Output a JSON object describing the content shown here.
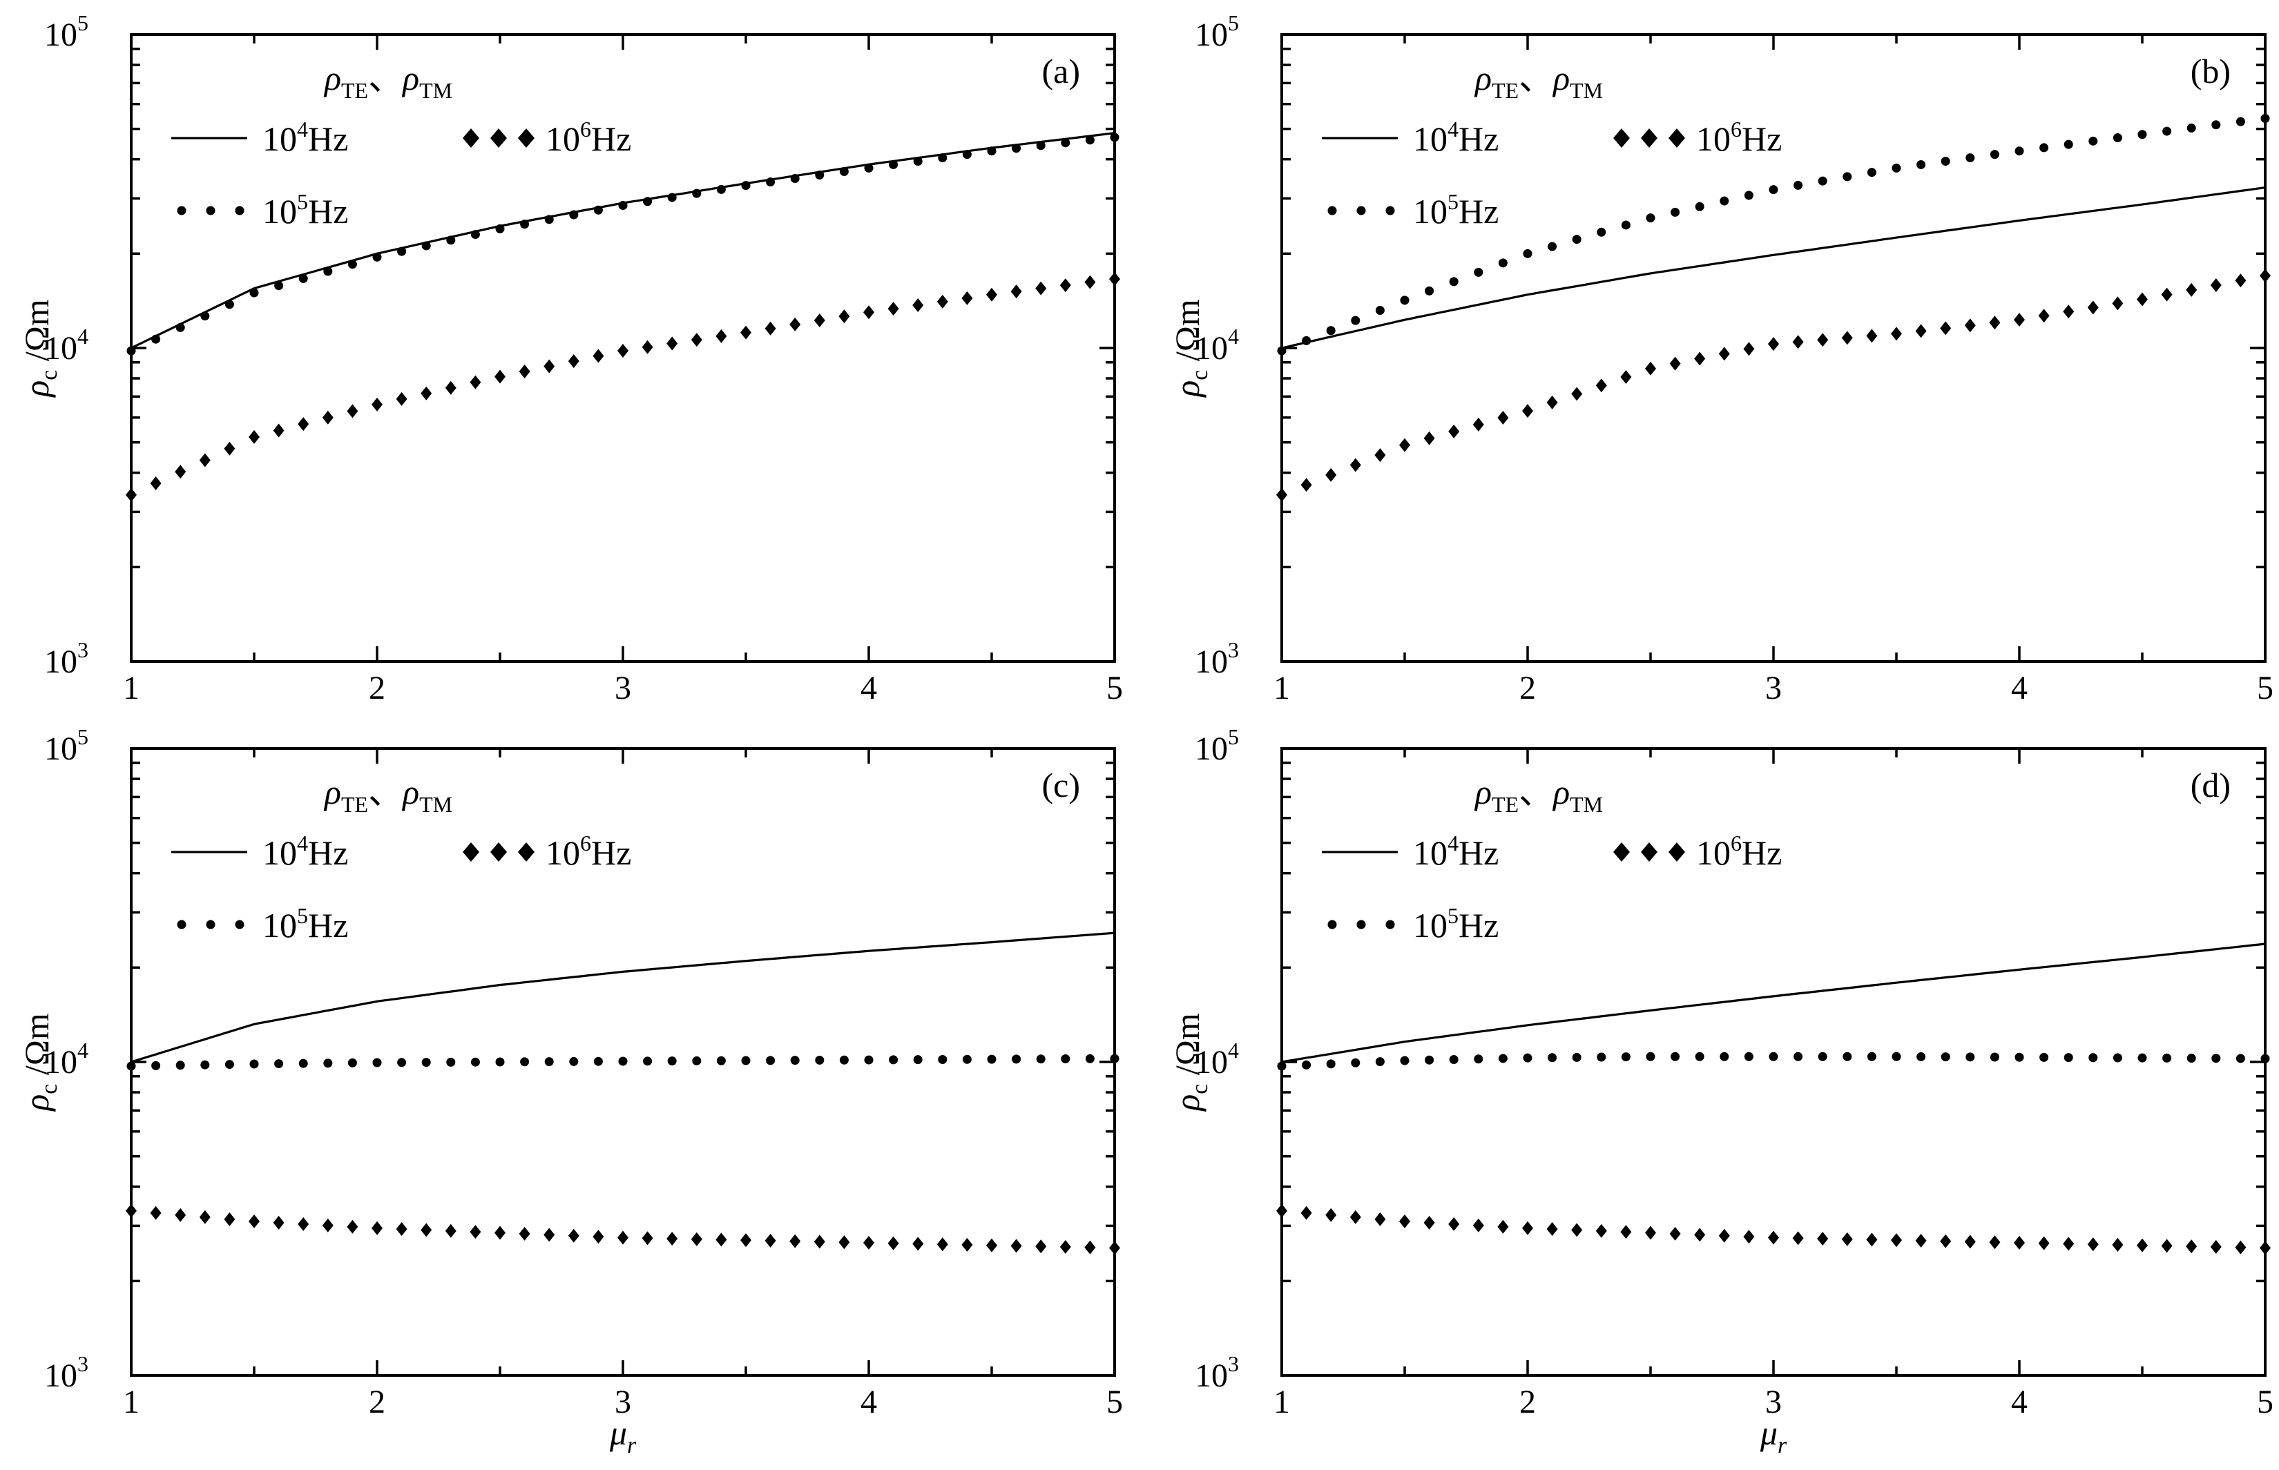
{
  "chart_data": [
    {
      "type": "line",
      "panel_label": "(a)",
      "xlim": [
        1,
        5
      ],
      "ylim": [
        1000,
        100000
      ],
      "yscale": "log",
      "xticks": [
        "1",
        "2",
        "3",
        "4",
        "5"
      ],
      "ytick_labels": [
        {
          "base": "10",
          "exp": "3"
        },
        {
          "base": "10",
          "exp": "4"
        },
        {
          "base": "10",
          "exp": "5"
        }
      ],
      "ylabel": {
        "main": "ρ",
        "sub": "c",
        "unit": " /Ωm"
      },
      "xlabel": {
        "main": "μ",
        "sub": "r"
      },
      "legend_title": {
        "a": "ρ",
        "a_sub": "TE",
        "sep": "、",
        "b": "ρ",
        "b_sub": "TM"
      },
      "legend": [
        {
          "base": "10",
          "exp": "4",
          "unit": "Hz",
          "marker": "line"
        },
        {
          "base": "10",
          "exp": "6",
          "unit": "Hz",
          "marker": "diamond"
        },
        {
          "base": "10",
          "exp": "5",
          "unit": "Hz",
          "marker": "dot"
        }
      ],
      "series": [
        {
          "name": "10⁴Hz",
          "style": "line",
          "x": [
            1,
            1.5,
            2,
            2.5,
            3,
            3.5,
            4,
            4.5,
            5
          ],
          "y": [
            10000,
            15500,
            20000,
            24500,
            29000,
            33500,
            38500,
            43500,
            48500
          ]
        },
        {
          "name": "10⁵Hz",
          "style": "dot",
          "x": [
            1,
            1.5,
            2,
            2.5,
            3,
            3.5,
            4,
            4.5,
            5
          ],
          "y": [
            9800,
            15000,
            19500,
            24000,
            28500,
            33000,
            37500,
            42500,
            47000
          ]
        },
        {
          "name": "10⁶Hz",
          "style": "diamond",
          "x": [
            1,
            1.5,
            2,
            2.5,
            3,
            3.5,
            4,
            4.5,
            5
          ],
          "y": [
            3400,
            5200,
            6600,
            8100,
            9800,
            11200,
            13000,
            14800,
            16600
          ]
        }
      ]
    },
    {
      "type": "line",
      "panel_label": "(b)",
      "xlim": [
        1,
        5
      ],
      "ylim": [
        1000,
        100000
      ],
      "yscale": "log",
      "xticks": [
        "1",
        "2",
        "3",
        "4",
        "5"
      ],
      "ytick_labels": [
        {
          "base": "10",
          "exp": "3"
        },
        {
          "base": "10",
          "exp": "4"
        },
        {
          "base": "10",
          "exp": "5"
        }
      ],
      "ylabel": {
        "main": "ρ",
        "sub": "c",
        "unit": " /Ωm"
      },
      "xlabel": {
        "main": "μ",
        "sub": "r"
      },
      "legend_title": {
        "a": "ρ",
        "a_sub": "TE",
        "sep": "、",
        "b": "ρ",
        "b_sub": "TM"
      },
      "legend": [
        {
          "base": "10",
          "exp": "4",
          "unit": "Hz",
          "marker": "line"
        },
        {
          "base": "10",
          "exp": "6",
          "unit": "Hz",
          "marker": "diamond"
        },
        {
          "base": "10",
          "exp": "5",
          "unit": "Hz",
          "marker": "dot"
        }
      ],
      "series": [
        {
          "name": "10⁴Hz",
          "style": "line",
          "x": [
            1,
            1.5,
            2,
            2.5,
            3,
            3.5,
            4,
            4.5,
            5
          ],
          "y": [
            10000,
            12300,
            14800,
            17300,
            19800,
            22500,
            25500,
            28700,
            32500
          ]
        },
        {
          "name": "10⁵Hz",
          "style": "dot",
          "x": [
            1,
            1.5,
            2,
            2.5,
            3,
            3.5,
            4,
            4.5,
            5
          ],
          "y": [
            9800,
            14200,
            20000,
            26000,
            32000,
            37500,
            42500,
            48000,
            54000
          ]
        },
        {
          "name": "10⁶Hz",
          "style": "diamond",
          "x": [
            1,
            1.5,
            2,
            2.5,
            3,
            3.5,
            4,
            4.5,
            5
          ],
          "y": [
            3400,
            4900,
            6300,
            8600,
            10300,
            11100,
            12300,
            14300,
            17000
          ]
        }
      ]
    },
    {
      "type": "line",
      "panel_label": "(c)",
      "xlim": [
        1,
        5
      ],
      "ylim": [
        1000,
        100000
      ],
      "yscale": "log",
      "xticks": [
        "1",
        "2",
        "3",
        "4",
        "5"
      ],
      "ytick_labels": [
        {
          "base": "10",
          "exp": "3"
        },
        {
          "base": "10",
          "exp": "4"
        },
        {
          "base": "10",
          "exp": "5"
        }
      ],
      "ylabel": {
        "main": "ρ",
        "sub": "c",
        "unit": " /Ωm"
      },
      "xlabel": {
        "main": "μ",
        "sub": "r"
      },
      "legend_title": {
        "a": "ρ",
        "a_sub": "TE",
        "sep": "、",
        "b": "ρ",
        "b_sub": "TM"
      },
      "legend": [
        {
          "base": "10",
          "exp": "4",
          "unit": "Hz",
          "marker": "line"
        },
        {
          "base": "10",
          "exp": "6",
          "unit": "Hz",
          "marker": "diamond"
        },
        {
          "base": "10",
          "exp": "5",
          "unit": "Hz",
          "marker": "dot"
        }
      ],
      "series": [
        {
          "name": "10⁴Hz",
          "style": "line",
          "x": [
            1,
            1.5,
            2,
            2.5,
            3,
            3.5,
            4,
            4.5,
            5
          ],
          "y": [
            10000,
            13200,
            15600,
            17600,
            19400,
            21000,
            22600,
            24100,
            25800
          ]
        },
        {
          "name": "10⁵Hz",
          "style": "dot",
          "x": [
            1,
            1.5,
            2,
            2.5,
            3,
            3.5,
            4,
            4.5,
            5
          ],
          "y": [
            9700,
            9850,
            9950,
            10000,
            10050,
            10100,
            10150,
            10200,
            10250
          ]
        },
        {
          "name": "10⁶Hz",
          "style": "diamond",
          "x": [
            1,
            1.5,
            2,
            2.5,
            3,
            3.5,
            4,
            4.5,
            5
          ],
          "y": [
            3350,
            3100,
            2950,
            2850,
            2750,
            2700,
            2650,
            2600,
            2550
          ]
        }
      ]
    },
    {
      "type": "line",
      "panel_label": "(d)",
      "xlim": [
        1,
        5
      ],
      "ylim": [
        1000,
        100000
      ],
      "yscale": "log",
      "xticks": [
        "1",
        "2",
        "3",
        "4",
        "5"
      ],
      "ytick_labels": [
        {
          "base": "10",
          "exp": "3"
        },
        {
          "base": "10",
          "exp": "4"
        },
        {
          "base": "10",
          "exp": "5"
        }
      ],
      "ylabel": {
        "main": "ρ",
        "sub": "c",
        "unit": " /Ωm"
      },
      "xlabel": {
        "main": "μ",
        "sub": "r"
      },
      "legend_title": {
        "a": "ρ",
        "a_sub": "TE",
        "sep": "、",
        "b": "ρ",
        "b_sub": "TM"
      },
      "legend": [
        {
          "base": "10",
          "exp": "4",
          "unit": "Hz",
          "marker": "line"
        },
        {
          "base": "10",
          "exp": "6",
          "unit": "Hz",
          "marker": "diamond"
        },
        {
          "base": "10",
          "exp": "5",
          "unit": "Hz",
          "marker": "dot"
        }
      ],
      "series": [
        {
          "name": "10⁴Hz",
          "style": "line",
          "x": [
            1,
            1.5,
            2,
            2.5,
            3,
            3.5,
            4,
            4.5,
            5
          ],
          "y": [
            10000,
            11600,
            13100,
            14600,
            16200,
            17900,
            19700,
            21600,
            23800
          ]
        },
        {
          "name": "10⁵Hz",
          "style": "dot",
          "x": [
            1,
            1.5,
            2,
            2.5,
            3,
            3.5,
            4,
            4.5,
            5
          ],
          "y": [
            9700,
            10100,
            10300,
            10400,
            10400,
            10400,
            10350,
            10300,
            10250
          ]
        },
        {
          "name": "10⁶Hz",
          "style": "diamond",
          "x": [
            1,
            1.5,
            2,
            2.5,
            3,
            3.5,
            4,
            4.5,
            5
          ],
          "y": [
            3350,
            3100,
            2950,
            2850,
            2750,
            2700,
            2650,
            2600,
            2550
          ]
        }
      ]
    }
  ]
}
